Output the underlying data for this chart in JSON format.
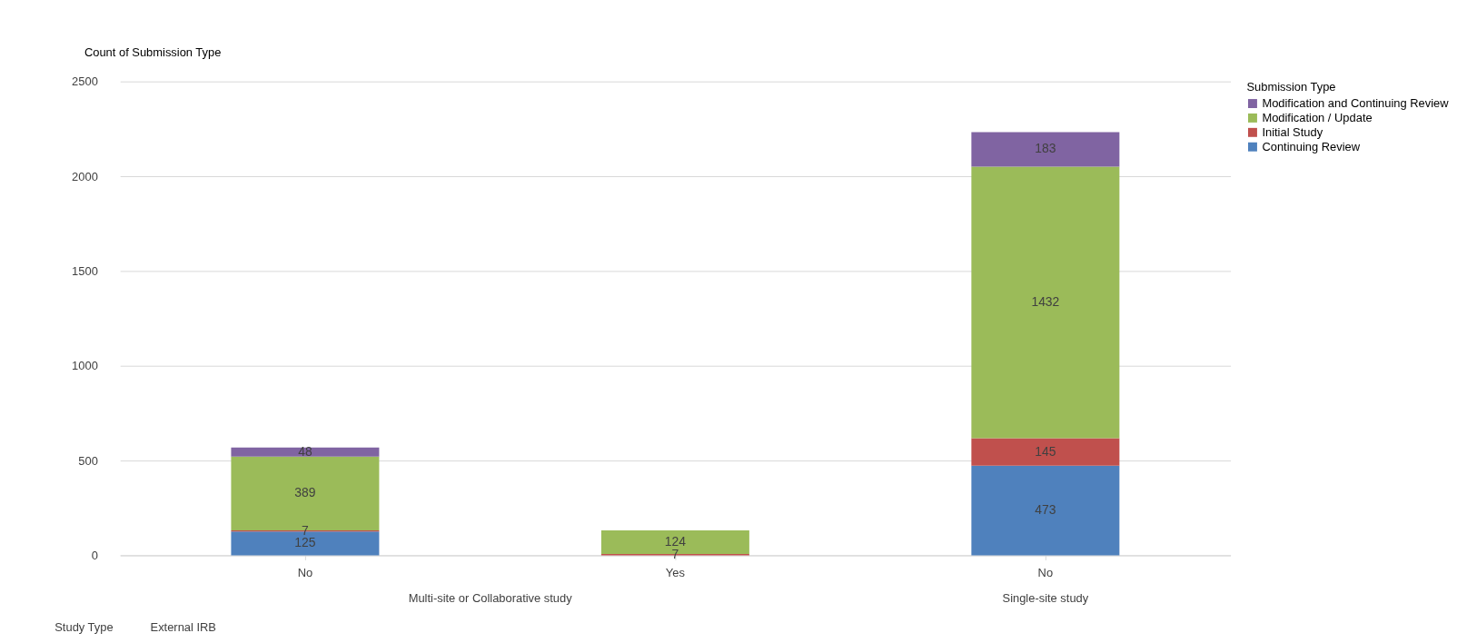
{
  "chart_data": {
    "type": "bar",
    "stacked": true,
    "ylabel": "Count of Submission Type",
    "legend_title": "Submission Type",
    "categories": [
      "No",
      "Yes",
      "No"
    ],
    "series": [
      {
        "name": "Continuing Review",
        "color": "#4f81bd",
        "values": [
          125,
          null,
          473
        ]
      },
      {
        "name": "Initial Study",
        "color": "#c0504d",
        "values": [
          7,
          7,
          145
        ]
      },
      {
        "name": "Modification / Update",
        "color": "#9bbb59",
        "values": [
          389,
          124,
          1432
        ]
      },
      {
        "name": "Modification and Continuing Review",
        "color": "#8064a2",
        "values": [
          48,
          null,
          183
        ]
      }
    ],
    "ylim": [
      0,
      2500
    ],
    "yticks": [
      0,
      500,
      1000,
      1500,
      2000,
      2500
    ],
    "grid": "y",
    "legend": "right",
    "data_labels": true,
    "annotations": [
      "Multi-site or Collaborative study",
      "Single-site study",
      "Study Type",
      "External IRB"
    ]
  }
}
